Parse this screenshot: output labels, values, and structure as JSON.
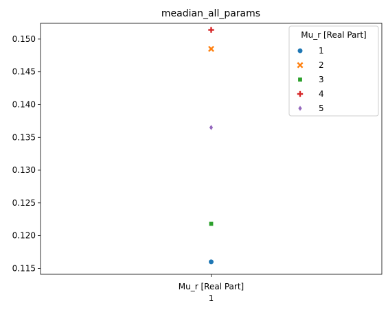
{
  "chart_data": {
    "type": "scatter",
    "title": "meadian_all_params",
    "xlabel": "1",
    "ylabel": "",
    "categories": [
      "Mu_r [Real Part]"
    ],
    "ylim": [
      0.1141,
      0.1524
    ],
    "yticks": [
      0.115,
      0.12,
      0.125,
      0.13,
      0.135,
      0.14,
      0.145,
      0.15
    ],
    "ytick_labels": [
      "0.115",
      "0.120",
      "0.125",
      "0.130",
      "0.135",
      "0.140",
      "0.145",
      "0.150"
    ],
    "grid": false,
    "legend": {
      "title": "Mu_r [Real Part]",
      "placement": "top-right"
    },
    "series": [
      {
        "name": "1",
        "marker": "circle",
        "color": "#1f77b4",
        "x": "Mu_r [Real Part]",
        "y": 0.116
      },
      {
        "name": "2",
        "marker": "x",
        "color": "#ff7f0e",
        "x": "Mu_r [Real Part]",
        "y": 0.1485
      },
      {
        "name": "3",
        "marker": "square",
        "color": "#2ca02c",
        "x": "Mu_r [Real Part]",
        "y": 0.1218
      },
      {
        "name": "4",
        "marker": "plus",
        "color": "#d62728",
        "x": "Mu_r [Real Part]",
        "y": 0.1514
      },
      {
        "name": "5",
        "marker": "diamond",
        "color": "#9467bd",
        "x": "Mu_r [Real Part]",
        "y": 0.1365
      }
    ]
  }
}
